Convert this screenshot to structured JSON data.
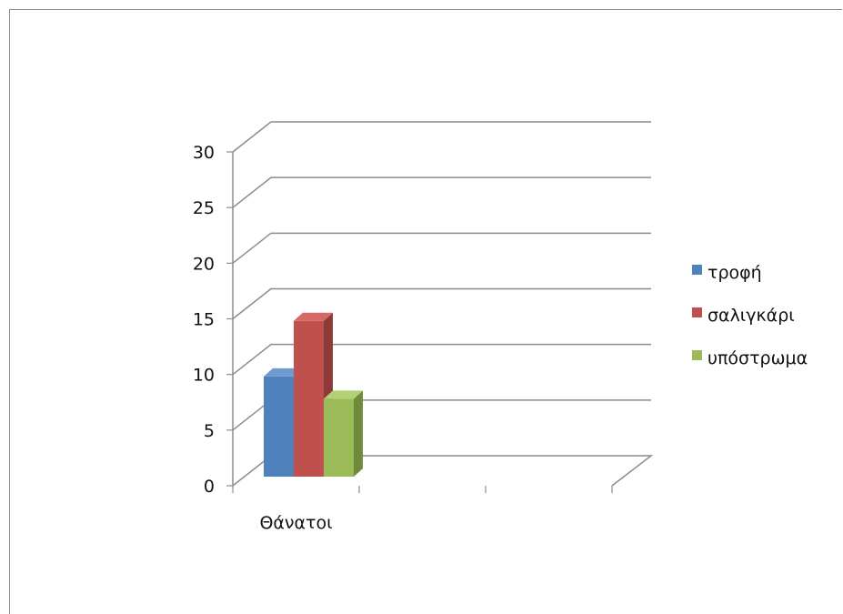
{
  "chart_data": {
    "type": "bar",
    "categories": [
      "Θάνατοι"
    ],
    "series": [
      {
        "name": "τροφή",
        "values": [
          9
        ],
        "color": "#4f81bd",
        "side": "#3a6190",
        "top": "#6f9ad0"
      },
      {
        "name": "σαλιγκάρι",
        "values": [
          14
        ],
        "color": "#c0504d",
        "side": "#8e3a38",
        "top": "#d36a67"
      },
      {
        "name": "υπόστρωμα",
        "values": [
          7
        ],
        "color": "#9bbb59",
        "side": "#6f8a3c",
        "top": "#b4d074"
      }
    ],
    "ylim": [
      0,
      30
    ],
    "yticks": [
      "0",
      "5",
      "10",
      "15",
      "20",
      "25",
      "30"
    ],
    "grid": true,
    "legend_position": "right",
    "style": "3d-clustered-column"
  }
}
